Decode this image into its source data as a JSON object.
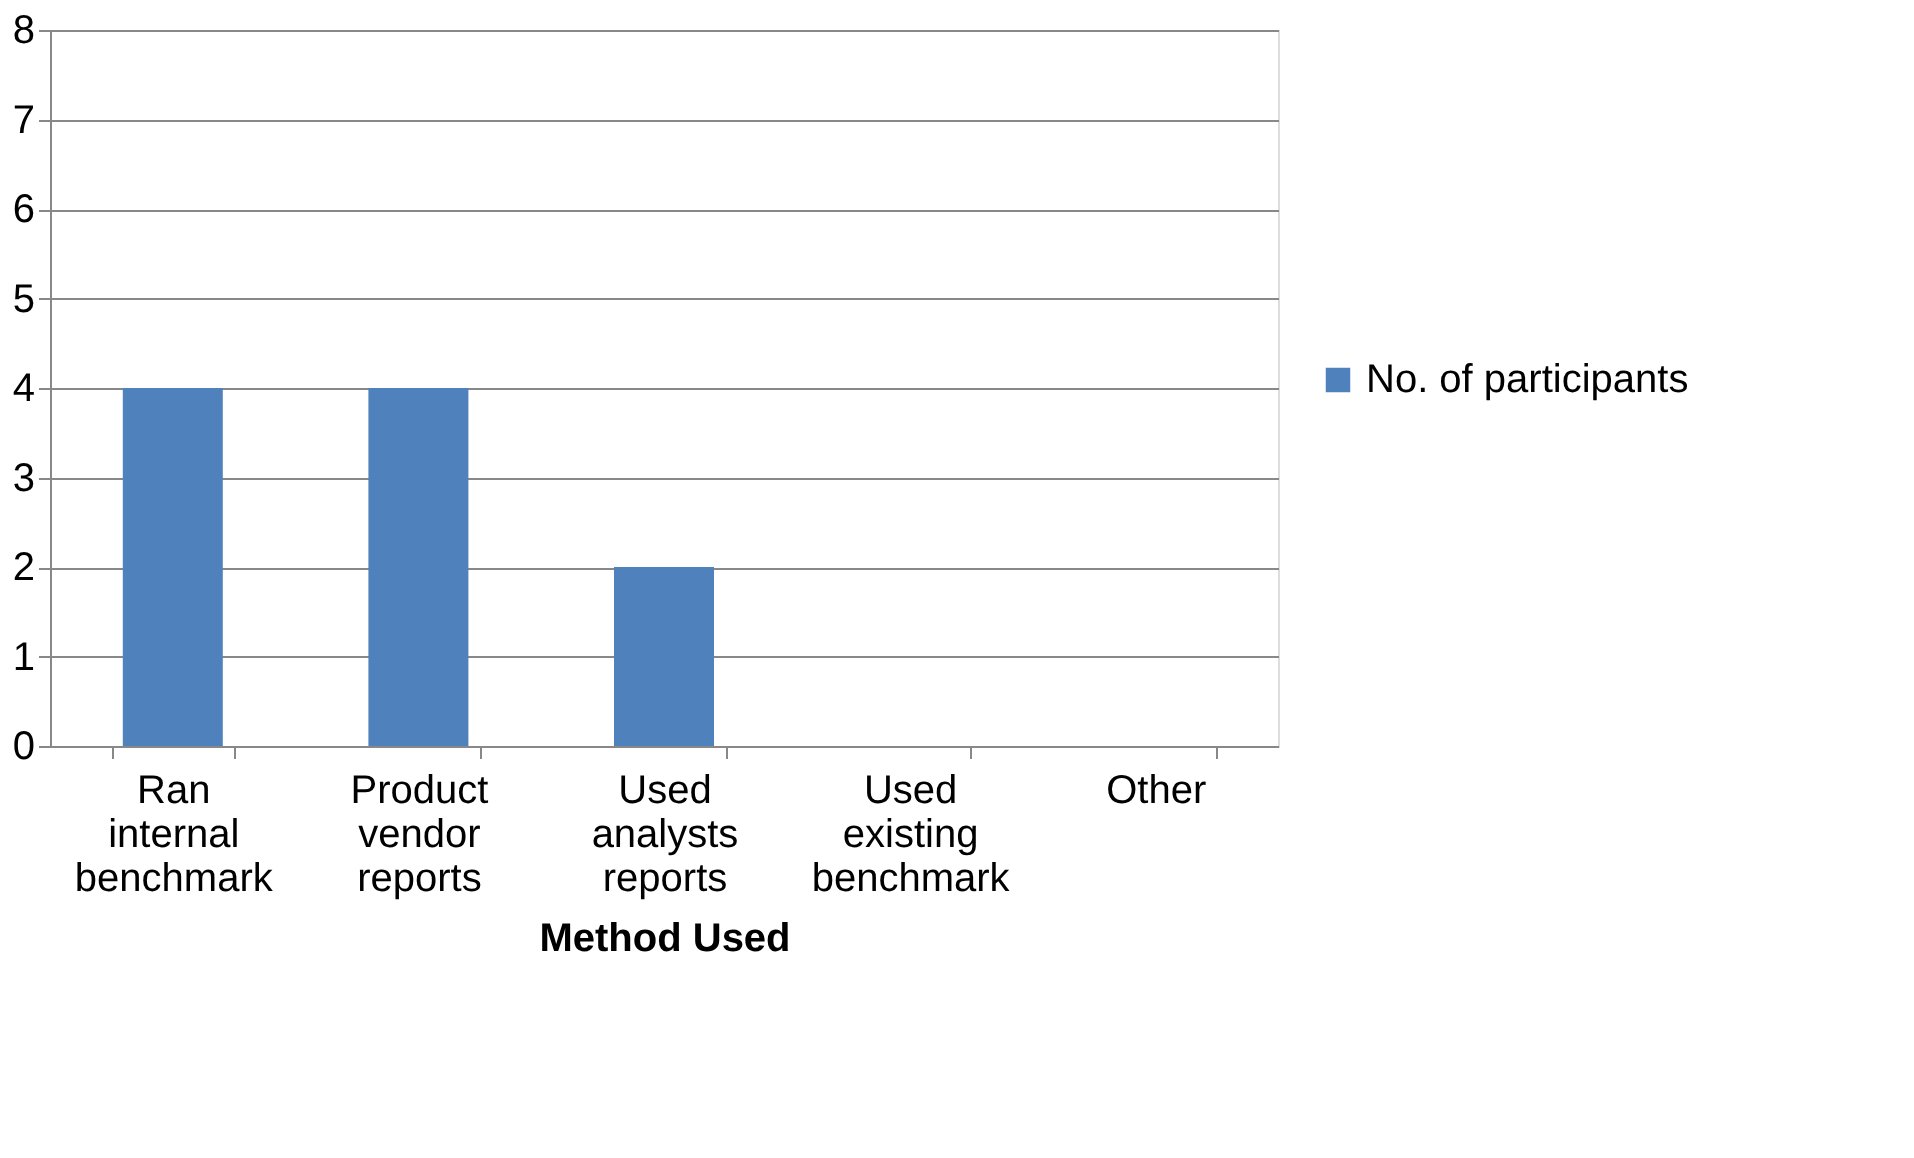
{
  "chart_data": {
    "type": "bar",
    "xlabel": "Method Used",
    "categories": [
      "Ran internal benchmark",
      "Product vendor reports",
      "Used analysts reports",
      "Used existing benchmark",
      "Other"
    ],
    "series": [
      {
        "name": "No. of participants",
        "color": "#4f81bd",
        "values": [
          4,
          4,
          2,
          0,
          0
        ]
      }
    ],
    "ylim": [
      0,
      8
    ],
    "yticks": [
      0,
      1,
      2,
      3,
      4,
      5,
      6,
      7,
      8
    ],
    "grid": "y",
    "legend": "right"
  }
}
